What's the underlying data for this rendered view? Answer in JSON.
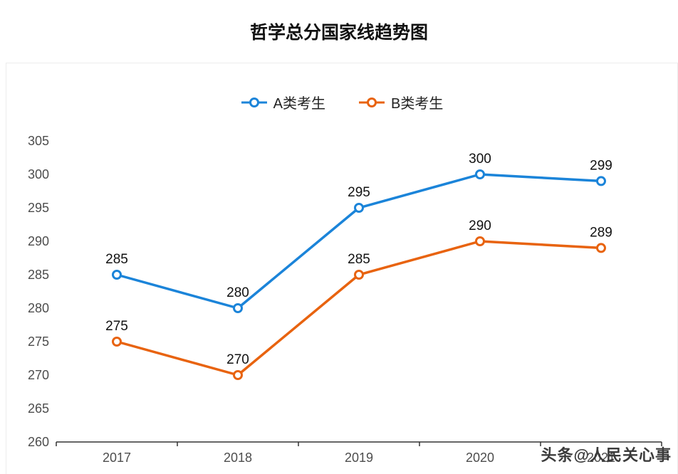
{
  "title": "哲学总分国家线趋势图",
  "watermark": "头条@人民关心事",
  "chart_data": {
    "type": "line",
    "title": "哲学总分国家线趋势图",
    "categories": [
      "2017",
      "2018",
      "2019",
      "2020",
      "2021"
    ],
    "series": [
      {
        "name": "A类考生",
        "color": "#1b84d9",
        "values": [
          285,
          280,
          295,
          300,
          299
        ]
      },
      {
        "name": "B类考生",
        "color": "#e8630f",
        "values": [
          275,
          270,
          285,
          290,
          289
        ]
      }
    ],
    "ylim": [
      260,
      305
    ],
    "yticks": [
      260,
      265,
      270,
      275,
      280,
      285,
      290,
      295,
      300,
      305
    ],
    "xlabel": "",
    "ylabel": "",
    "grid": false,
    "legend_position": "top",
    "marker": "empty-circle",
    "axis_color": "#333333",
    "tick_label_color": "#4d4d4d",
    "data_label_color": "#111111"
  }
}
